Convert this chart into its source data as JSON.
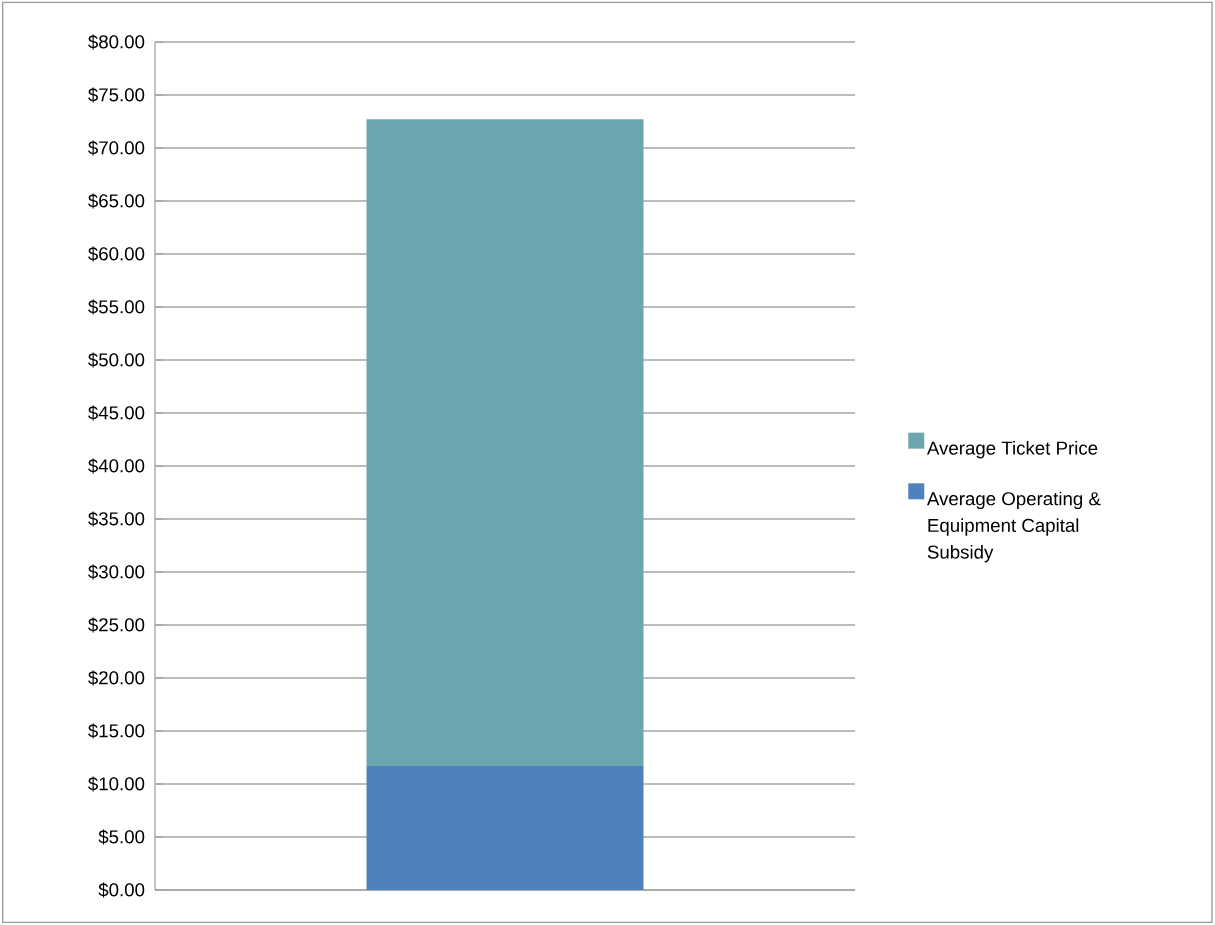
{
  "chart_data": {
    "type": "bar",
    "stacked": true,
    "categories": [
      null
    ],
    "series": [
      {
        "name": "Average Operating & Equipment Capital Subsidy",
        "color": "#4f81bd",
        "values": [
          11.7
        ]
      },
      {
        "name": "Average Ticket Price",
        "color": "#6ba5ae",
        "values": [
          61.0
        ]
      }
    ],
    "ylim": [
      0,
      80
    ],
    "yticks": [
      {
        "value": 0,
        "label": "$0.00"
      },
      {
        "value": 5,
        "label": "$5.00"
      },
      {
        "value": 10,
        "label": "$10.00"
      },
      {
        "value": 15,
        "label": "$15.00"
      },
      {
        "value": 20,
        "label": "$20.00"
      },
      {
        "value": 25,
        "label": "$25.00"
      },
      {
        "value": 30,
        "label": "$30.00"
      },
      {
        "value": 35,
        "label": "$35.00"
      },
      {
        "value": 40,
        "label": "$40.00"
      },
      {
        "value": 45,
        "label": "$45.00"
      },
      {
        "value": 50,
        "label": "$50.00"
      },
      {
        "value": 55,
        "label": "$55.00"
      },
      {
        "value": 60,
        "label": "$60.00"
      },
      {
        "value": 65,
        "label": "$65.00"
      },
      {
        "value": 70,
        "label": "$70.00"
      },
      {
        "value": 75,
        "label": "$75.00"
      },
      {
        "value": 80,
        "label": "$80.00"
      }
    ],
    "grid": "y",
    "legend": "right"
  }
}
